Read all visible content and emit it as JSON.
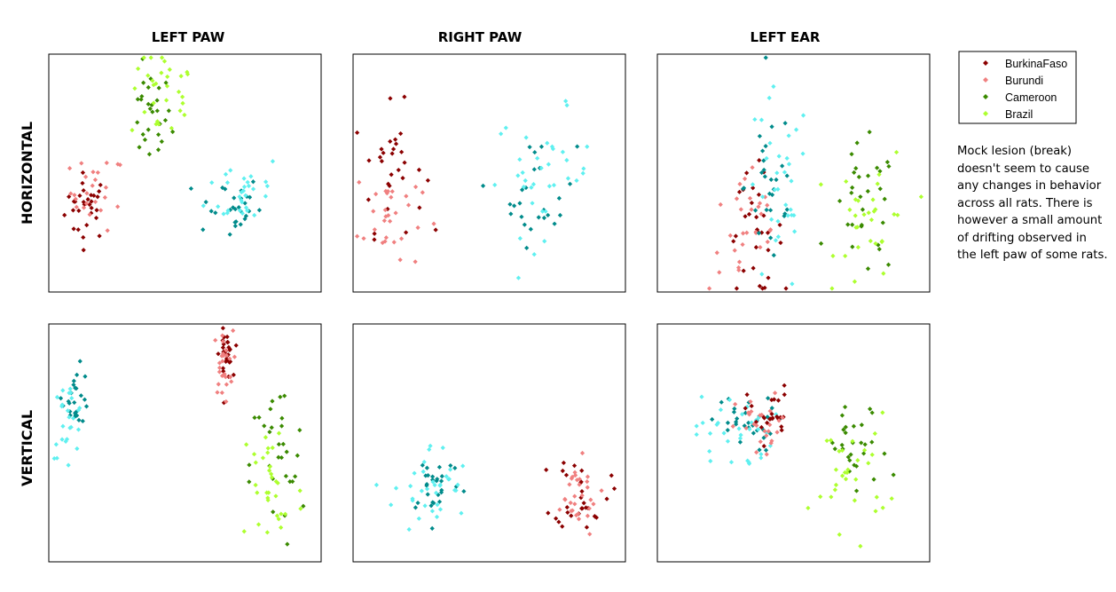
{
  "chart_data": {
    "type": "scatter",
    "columns": [
      "LEFT PAW",
      "RIGHT PAW",
      "LEFT EAR"
    ],
    "rows": [
      "HORIZONTAL",
      "VERTICAL"
    ],
    "legend": {
      "placement": "top-right",
      "entries": [
        {
          "name": "BurkinaFaso",
          "color": "#8b0000"
        },
        {
          "name": "Burundi",
          "color": "#f08080"
        },
        {
          "name": "Cameroon",
          "color": "#3a8a00"
        },
        {
          "name": "Brazil",
          "color": "#adff2f"
        }
      ]
    },
    "extra_colors": {
      "teal": "#008b8b",
      "cyan": "#5ff0f0"
    },
    "grid": false,
    "axes_ticks": false,
    "panels": [
      {
        "row": "HORIZONTAL",
        "column": "LEFT PAW",
        "clusters": [
          {
            "color": "#8b0000",
            "cx": 0.14,
            "cy": 0.36,
            "sx": 0.04,
            "sy": 0.07,
            "n": 30
          },
          {
            "color": "#f08080",
            "cx": 0.18,
            "cy": 0.42,
            "sx": 0.05,
            "sy": 0.08,
            "n": 25
          },
          {
            "color": "#3a8a00",
            "cx": 0.37,
            "cy": 0.73,
            "sx": 0.04,
            "sy": 0.1,
            "n": 28
          },
          {
            "color": "#adff2f",
            "cx": 0.42,
            "cy": 0.83,
            "sx": 0.06,
            "sy": 0.1,
            "n": 30
          },
          {
            "color": "#008b8b",
            "cx": 0.66,
            "cy": 0.36,
            "sx": 0.06,
            "sy": 0.07,
            "n": 28
          },
          {
            "color": "#5ff0f0",
            "cx": 0.72,
            "cy": 0.43,
            "sx": 0.07,
            "sy": 0.08,
            "n": 30
          }
        ]
      },
      {
        "row": "HORIZONTAL",
        "column": "RIGHT PAW",
        "clusters": [
          {
            "color": "#8b0000",
            "cx": 0.14,
            "cy": 0.52,
            "sx": 0.06,
            "sy": 0.13,
            "n": 30
          },
          {
            "color": "#f08080",
            "cx": 0.13,
            "cy": 0.32,
            "sx": 0.06,
            "sy": 0.12,
            "n": 30
          },
          {
            "color": "#008b8b",
            "cx": 0.68,
            "cy": 0.42,
            "sx": 0.07,
            "sy": 0.11,
            "n": 25
          },
          {
            "color": "#5ff0f0",
            "cx": 0.7,
            "cy": 0.5,
            "sx": 0.09,
            "sy": 0.13,
            "n": 35
          }
        ]
      },
      {
        "row": "HORIZONTAL",
        "column": "LEFT EAR",
        "clusters": [
          {
            "color": "#8b0000",
            "cx": 0.36,
            "cy": 0.25,
            "sx": 0.05,
            "sy": 0.13,
            "n": 30
          },
          {
            "color": "#f08080",
            "cx": 0.33,
            "cy": 0.25,
            "sx": 0.07,
            "sy": 0.14,
            "n": 30
          },
          {
            "color": "#008b8b",
            "cx": 0.42,
            "cy": 0.45,
            "sx": 0.05,
            "sy": 0.2,
            "n": 28
          },
          {
            "color": "#5ff0f0",
            "cx": 0.44,
            "cy": 0.4,
            "sx": 0.06,
            "sy": 0.22,
            "n": 32
          },
          {
            "color": "#3a8a00",
            "cx": 0.76,
            "cy": 0.33,
            "sx": 0.06,
            "sy": 0.14,
            "n": 30
          },
          {
            "color": "#adff2f",
            "cx": 0.8,
            "cy": 0.3,
            "sx": 0.07,
            "sy": 0.15,
            "n": 30
          }
        ]
      },
      {
        "row": "VERTICAL",
        "column": "LEFT PAW",
        "clusters": [
          {
            "color": "#008b8b",
            "cx": 0.1,
            "cy": 0.7,
            "sx": 0.025,
            "sy": 0.06,
            "n": 25
          },
          {
            "color": "#5ff0f0",
            "cx": 0.07,
            "cy": 0.6,
            "sx": 0.03,
            "sy": 0.08,
            "n": 25
          },
          {
            "color": "#8b0000",
            "cx": 0.65,
            "cy": 0.87,
            "sx": 0.012,
            "sy": 0.05,
            "n": 30
          },
          {
            "color": "#f08080",
            "cx": 0.64,
            "cy": 0.83,
            "sx": 0.018,
            "sy": 0.07,
            "n": 25
          },
          {
            "color": "#3a8a00",
            "cx": 0.84,
            "cy": 0.4,
            "sx": 0.05,
            "sy": 0.18,
            "n": 30
          },
          {
            "color": "#adff2f",
            "cx": 0.82,
            "cy": 0.3,
            "sx": 0.06,
            "sy": 0.18,
            "n": 32
          }
        ]
      },
      {
        "row": "VERTICAL",
        "column": "RIGHT PAW",
        "clusters": [
          {
            "color": "#008b8b",
            "cx": 0.3,
            "cy": 0.34,
            "sx": 0.05,
            "sy": 0.07,
            "n": 28
          },
          {
            "color": "#5ff0f0",
            "cx": 0.29,
            "cy": 0.3,
            "sx": 0.07,
            "sy": 0.1,
            "n": 35
          },
          {
            "color": "#8b0000",
            "cx": 0.84,
            "cy": 0.3,
            "sx": 0.05,
            "sy": 0.08,
            "n": 30
          },
          {
            "color": "#f08080",
            "cx": 0.81,
            "cy": 0.27,
            "sx": 0.05,
            "sy": 0.08,
            "n": 30
          }
        ]
      },
      {
        "row": "VERTICAL",
        "column": "LEFT EAR",
        "clusters": [
          {
            "color": "#008b8b",
            "cx": 0.31,
            "cy": 0.58,
            "sx": 0.06,
            "sy": 0.06,
            "n": 30
          },
          {
            "color": "#5ff0f0",
            "cx": 0.28,
            "cy": 0.54,
            "sx": 0.07,
            "sy": 0.08,
            "n": 32
          },
          {
            "color": "#8b0000",
            "cx": 0.41,
            "cy": 0.62,
            "sx": 0.04,
            "sy": 0.06,
            "n": 25
          },
          {
            "color": "#f08080",
            "cx": 0.39,
            "cy": 0.56,
            "sx": 0.05,
            "sy": 0.07,
            "n": 25
          },
          {
            "color": "#3a8a00",
            "cx": 0.73,
            "cy": 0.46,
            "sx": 0.06,
            "sy": 0.1,
            "n": 28
          },
          {
            "color": "#adff2f",
            "cx": 0.71,
            "cy": 0.38,
            "sx": 0.07,
            "sy": 0.12,
            "n": 30
          }
        ]
      }
    ]
  },
  "note": "Mock lesion (break) doesn't seem to cause any changes in behavior across all rats. There is however a small amount of drifting observed in the left paw of some rats."
}
